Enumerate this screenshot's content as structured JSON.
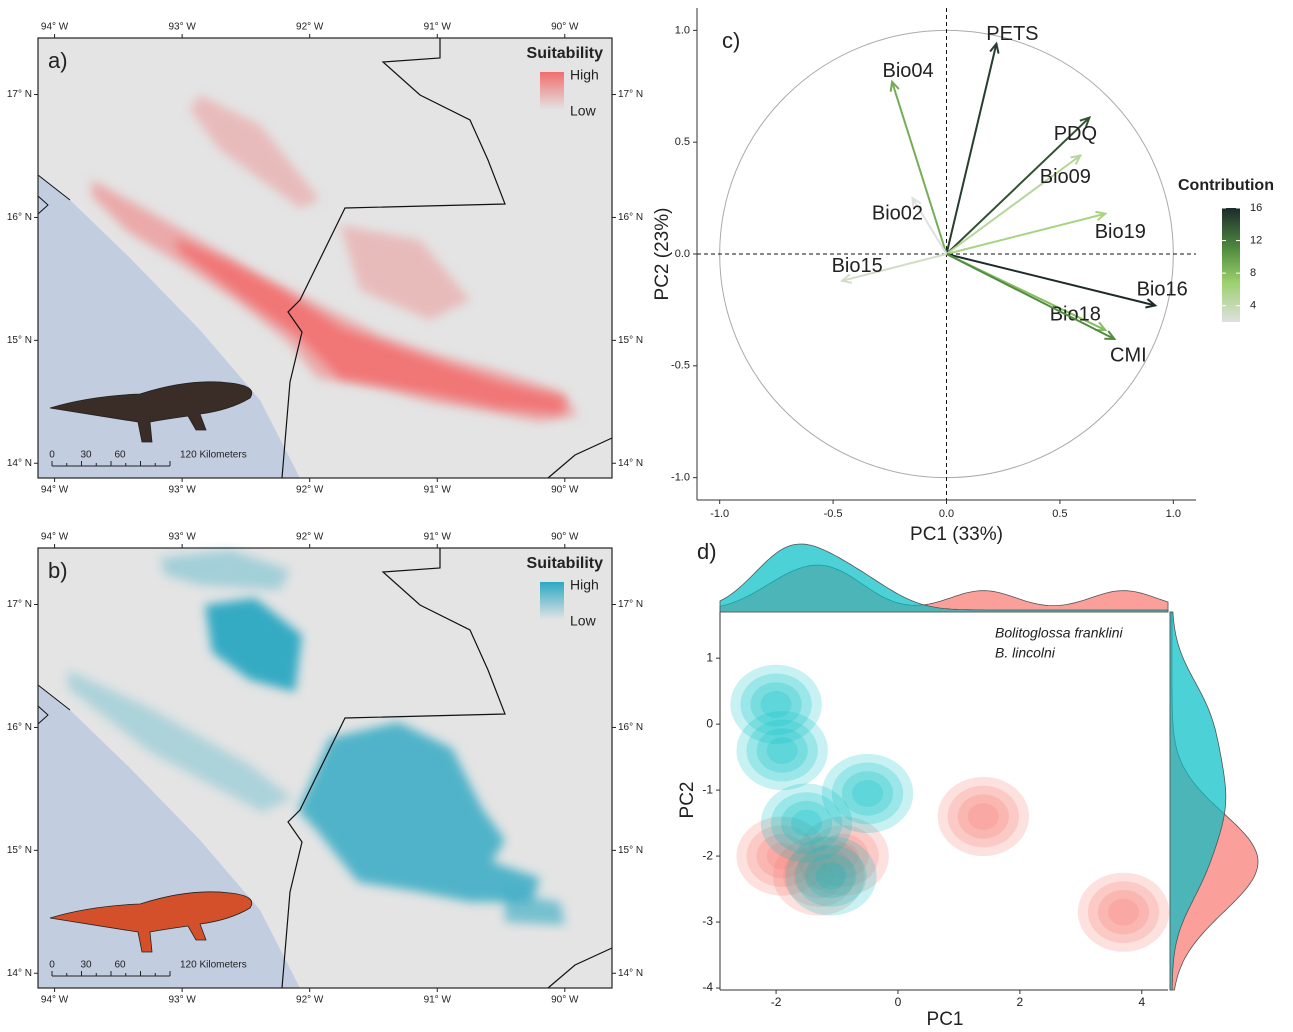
{
  "chart_data": [
    {
      "type": "map",
      "panel": "a)",
      "legend_title": "Suitability",
      "legend_labels": [
        "High",
        "Low"
      ],
      "color": "#f26d6d",
      "xlim": [
        -94.13,
        -89.63
      ],
      "ylim": [
        13.88,
        17.46
      ],
      "xticks": [
        {
          "value": -94,
          "label": "94° W"
        },
        {
          "value": -93,
          "label": "93° W"
        },
        {
          "value": -92,
          "label": "92° W"
        },
        {
          "value": -91,
          "label": "91° W"
        },
        {
          "value": -90,
          "label": "90° W"
        }
      ],
      "yticks": [
        {
          "value": 14,
          "label": "14° N"
        },
        {
          "value": 15,
          "label": "15° N"
        },
        {
          "value": 16,
          "label": "16° N"
        },
        {
          "value": 17,
          "label": "17° N"
        }
      ],
      "scale_labels": [
        "0",
        "30",
        "60",
        "120 Kilometers"
      ]
    },
    {
      "type": "map",
      "panel": "b)",
      "legend_title": "Suitability",
      "legend_labels": [
        "High",
        "Low"
      ],
      "color": "#2ba8c2",
      "xlim": [
        -94.13,
        -89.63
      ],
      "ylim": [
        13.88,
        17.46
      ],
      "xticks": [
        {
          "value": -94,
          "label": "94° W"
        },
        {
          "value": -93,
          "label": "93° W"
        },
        {
          "value": -92,
          "label": "92° W"
        },
        {
          "value": -91,
          "label": "91° W"
        },
        {
          "value": -90,
          "label": "90° W"
        }
      ],
      "yticks": [
        {
          "value": 14,
          "label": "14° N"
        },
        {
          "value": 15,
          "label": "15° N"
        },
        {
          "value": 16,
          "label": "16° N"
        },
        {
          "value": 17,
          "label": "17° N"
        }
      ],
      "scale_labels": [
        "0",
        "30",
        "60",
        "120 Kilometers"
      ]
    },
    {
      "type": "biplot",
      "panel": "c)",
      "x_label": "PC1 (33%)",
      "y_label": "PC2 (23%)",
      "xlim": [
        -1.1,
        1.1
      ],
      "ylim": [
        -1.1,
        1.1
      ],
      "xticks": [
        {
          "value": -1,
          "label": "-1.0"
        },
        -0.5,
        {
          "value": 0,
          "label": "0.0"
        },
        0.5,
        {
          "value": 1,
          "label": "1.0"
        }
      ],
      "yticks": [
        {
          "value": -1,
          "label": "-1.0"
        },
        -0.5,
        {
          "value": 0,
          "label": "0.0"
        },
        0.5,
        {
          "value": 1,
          "label": "1.0"
        }
      ],
      "vectors": {
        "names": [
          "PETS",
          "Bio04",
          "PDQ",
          "Bio09",
          "Bio19",
          "Bio16",
          "Bio18",
          "CMI",
          "Bio02",
          "Bio15"
        ],
        "x": [
          0.22,
          -0.24,
          0.63,
          0.59,
          0.7,
          0.92,
          0.7,
          0.74,
          -0.15,
          -0.46
        ],
        "y": [
          0.94,
          0.77,
          0.61,
          0.44,
          0.18,
          -0.23,
          -0.34,
          -0.38,
          0.25,
          -0.12
        ],
        "contribution": [
          15,
          9,
          14,
          5,
          6,
          16,
          8,
          11,
          2,
          3
        ]
      },
      "legend_title": "Contribution",
      "clim": [
        2,
        16
      ],
      "cticks": [
        4,
        8,
        12,
        16
      ]
    },
    {
      "type": "density",
      "panel": "d)",
      "x_label": "PC1",
      "y_label": "PC2",
      "xlim": [
        -2.92,
        4.43
      ],
      "ylim": [
        -4.03,
        1.7
      ],
      "xticks": [
        -2,
        0,
        2,
        4
      ],
      "yticks": [
        -4,
        -3,
        -2,
        -1,
        0,
        1
      ],
      "series": [
        {
          "name": "Bolitoglossa franklini",
          "color": "#f8766d",
          "x": [
            -1.9,
            -0.9,
            -1.3,
            1.4,
            3.7
          ],
          "y": [
            -2.0,
            -2.0,
            -2.3,
            -1.4,
            -2.85
          ]
        },
        {
          "name": "B. lincolni",
          "color": "#00bfc4",
          "x": [
            -2.0,
            -1.9,
            -0.5,
            -1.1,
            -1.5
          ],
          "y": [
            0.3,
            -0.4,
            -1.05,
            -2.3,
            -1.5
          ]
        }
      ]
    }
  ]
}
